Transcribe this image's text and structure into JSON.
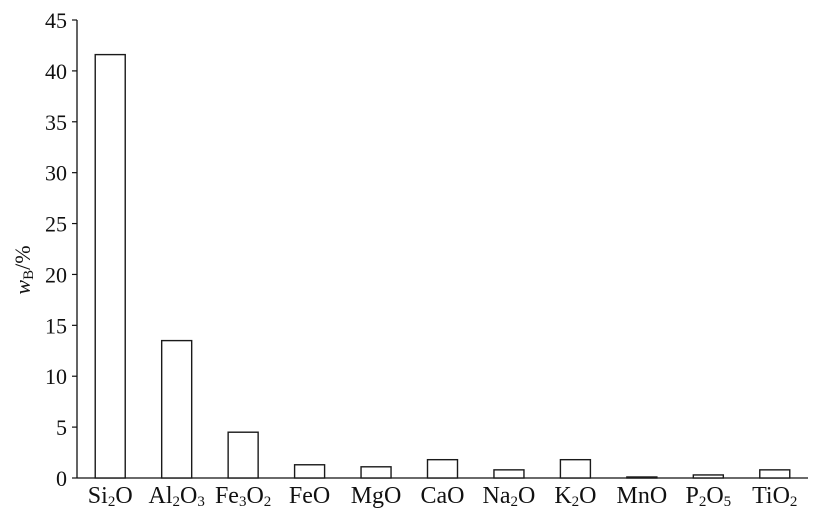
{
  "chart_data": {
    "type": "bar",
    "categories": [
      {
        "label": "Si₂O",
        "parts": [
          {
            "t": "Si"
          },
          {
            "t": "2",
            "sub": true
          },
          {
            "t": "O"
          }
        ]
      },
      {
        "label": "Al₂O₃",
        "parts": [
          {
            "t": "Al"
          },
          {
            "t": "2",
            "sub": true
          },
          {
            "t": "O"
          },
          {
            "t": "3",
            "sub": true
          }
        ]
      },
      {
        "label": "Fe₃O₂",
        "parts": [
          {
            "t": "Fe"
          },
          {
            "t": "3",
            "sub": true
          },
          {
            "t": "O"
          },
          {
            "t": "2",
            "sub": true
          }
        ]
      },
      {
        "label": "FeO",
        "parts": [
          {
            "t": "FeO"
          }
        ]
      },
      {
        "label": "MgO",
        "parts": [
          {
            "t": "MgO"
          }
        ]
      },
      {
        "label": "CaO",
        "parts": [
          {
            "t": "CaO"
          }
        ]
      },
      {
        "label": "Na₂O",
        "parts": [
          {
            "t": "Na"
          },
          {
            "t": "2",
            "sub": true
          },
          {
            "t": "O"
          }
        ]
      },
      {
        "label": "K₂O",
        "parts": [
          {
            "t": "K"
          },
          {
            "t": "2",
            "sub": true
          },
          {
            "t": "O"
          }
        ]
      },
      {
        "label": "MnO",
        "parts": [
          {
            "t": "MnO"
          }
        ]
      },
      {
        "label": "P₂O₅",
        "parts": [
          {
            "t": "P"
          },
          {
            "t": "2",
            "sub": true
          },
          {
            "t": "O"
          },
          {
            "t": "5",
            "sub": true
          }
        ]
      },
      {
        "label": "TiO₂",
        "parts": [
          {
            "t": "TiO"
          },
          {
            "t": "2",
            "sub": true
          }
        ]
      }
    ],
    "values": [
      41.6,
      13.5,
      4.5,
      1.3,
      1.1,
      1.8,
      0.8,
      1.8,
      0.1,
      0.3,
      0.8
    ],
    "ylabel": "wB/%",
    "ylim": [
      0,
      45
    ],
    "yticks": [
      0,
      5,
      10,
      15,
      20,
      25,
      30,
      35,
      40,
      45
    ],
    "grid": false,
    "bar_color": "#ffffff",
    "bar_stroke": "#1a1a1a"
  }
}
